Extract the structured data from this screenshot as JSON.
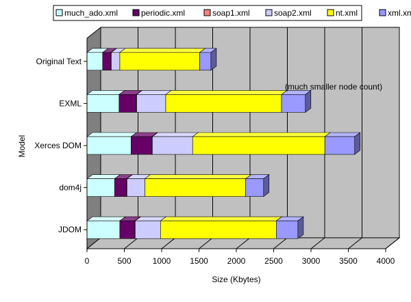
{
  "chart_data": {
    "type": "bar",
    "orientation": "horizontal",
    "stacked": true,
    "style": "3d",
    "title": "",
    "xlabel": "Size (Kbytes)",
    "ylabel": "Model",
    "xlim": [
      0,
      4000
    ],
    "x_ticks": [
      "0",
      "500",
      "1000",
      "1500",
      "2000",
      "2500",
      "3000",
      "3500",
      "4000"
    ],
    "grid": true,
    "legend_position": "top",
    "categories": [
      "Original Text",
      "EXML",
      "Xerces DOM",
      "dom4j",
      "JDOM"
    ],
    "series": [
      {
        "name": "much_ado.xml",
        "color": "#ccffff",
        "values": [
          210,
          430,
          590,
          370,
          440
        ]
      },
      {
        "name": "periodic.xml",
        "color": "#660066",
        "values": [
          110,
          230,
          280,
          160,
          200
        ]
      },
      {
        "name": "soap1.xml",
        "color": "#ff8080",
        "values": [
          5,
          5,
          5,
          5,
          5
        ]
      },
      {
        "name": "soap2.xml",
        "color": "#ccccff",
        "values": [
          115,
          390,
          540,
          240,
          340
        ]
      },
      {
        "name": "nt.xml",
        "color": "#ffff00",
        "values": [
          1070,
          1550,
          1770,
          1350,
          1550
        ]
      },
      {
        "name": "xml.xml",
        "color": "#9999ff",
        "values": [
          150,
          320,
          400,
          240,
          290
        ]
      }
    ],
    "annotations": [
      {
        "text": "(much smaller node count)",
        "category": "EXML"
      }
    ]
  }
}
